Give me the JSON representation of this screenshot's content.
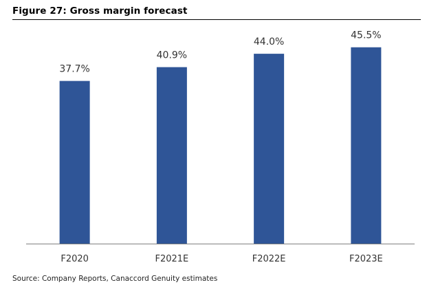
{
  "header": {
    "title": "Figure 27: Gross margin forecast"
  },
  "footer": {
    "source": "Source: Company Reports, Canaccord Genuity estimates"
  },
  "colors": {
    "bar": "#2f5597",
    "axis": "#7f7f7f"
  },
  "chart_data": {
    "type": "bar",
    "title": "",
    "xlabel": "",
    "ylabel": "",
    "categories": [
      "F2020",
      "F2021E",
      "F2022E",
      "F2023E"
    ],
    "values": [
      37.7,
      40.9,
      44.0,
      45.5
    ],
    "data_labels": [
      "37.7%",
      "40.9%",
      "44.0%",
      "45.5%"
    ],
    "ylim": [
      0,
      50
    ],
    "grid": false,
    "legend": "none"
  }
}
